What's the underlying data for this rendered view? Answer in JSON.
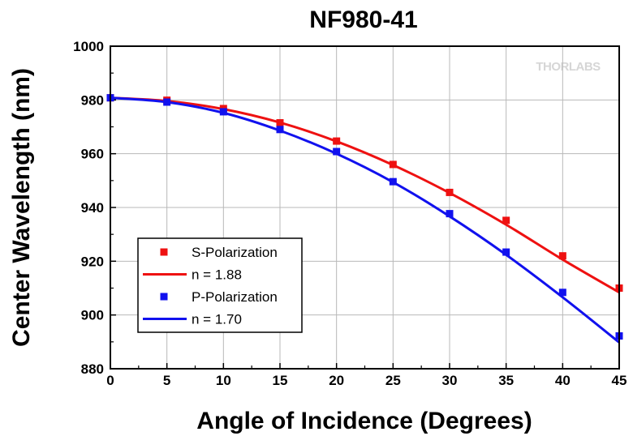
{
  "chart_data": {
    "type": "line",
    "title": "NF980-41",
    "xlabel": "Angle of Incidence (Degrees)",
    "ylabel": "Center Wavelength (nm)",
    "xlim": [
      0,
      45
    ],
    "ylim": [
      880,
      1000
    ],
    "xticks": [
      0,
      5,
      10,
      15,
      20,
      25,
      30,
      35,
      40,
      45
    ],
    "yticks": [
      880,
      900,
      920,
      940,
      960,
      980,
      1000
    ],
    "grid": true,
    "legend_position": "bottom-left",
    "watermark": "THORLABS",
    "colors": {
      "s": "#ee1111",
      "p": "#1111ee",
      "grid": "#b8b8b8"
    },
    "series": [
      {
        "name": "S-Polarization",
        "kind": "markers",
        "marker": "square",
        "color": "#ee1111",
        "x": [
          0,
          5,
          10,
          15,
          20,
          25,
          30,
          35,
          40,
          45
        ],
        "y": [
          980.8,
          979.9,
          976.8,
          971.5,
          964.7,
          956.0,
          945.6,
          935.2,
          922.0,
          910.0
        ]
      },
      {
        "name": "n = 1.88",
        "kind": "line",
        "color": "#ee1111",
        "x": [
          0,
          5,
          10,
          15,
          20,
          25,
          30,
          35,
          40,
          45
        ],
        "y": [
          980.8,
          979.6,
          976.6,
          971.6,
          964.6,
          955.8,
          945.4,
          933.6,
          920.6,
          908.4
        ]
      },
      {
        "name": "P-Polarization",
        "kind": "markers",
        "marker": "square",
        "color": "#1111ee",
        "x": [
          0,
          5,
          10,
          15,
          20,
          25,
          30,
          35,
          40,
          45
        ],
        "y": [
          980.8,
          979.2,
          975.6,
          969.0,
          960.8,
          949.6,
          937.7,
          923.4,
          908.4,
          892.2
        ]
      },
      {
        "name": "n = 1.70",
        "kind": "line",
        "color": "#1111ee",
        "x": [
          0,
          5,
          10,
          15,
          20,
          25,
          30,
          35,
          40,
          45
        ],
        "y": [
          980.8,
          979.2,
          975.2,
          968.6,
          960.0,
          949.4,
          936.7,
          922.4,
          906.6,
          889.8
        ]
      }
    ]
  }
}
